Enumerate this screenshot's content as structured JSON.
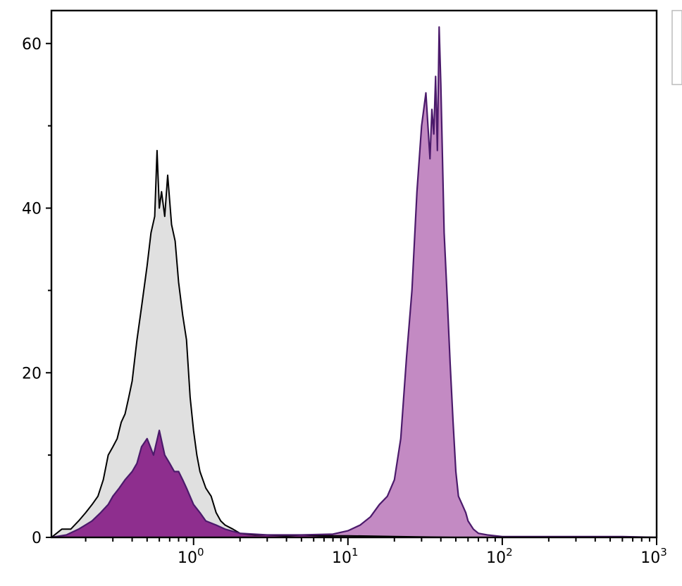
{
  "chart_data": {
    "type": "area",
    "title": "",
    "xlabel": "",
    "ylabel": "",
    "x_scale": "log",
    "xlim": [
      0.12,
      1000
    ],
    "ylim": [
      0,
      64
    ],
    "grid": false,
    "x_ticks": [
      {
        "value": 1,
        "base": "10",
        "exp": "0"
      },
      {
        "value": 10,
        "base": "10",
        "exp": "1"
      },
      {
        "value": 100,
        "base": "10",
        "exp": "2"
      },
      {
        "value": 1000,
        "base": "10",
        "exp": "3"
      }
    ],
    "y_ticks": [
      {
        "value": 0,
        "label": "0"
      },
      {
        "value": 20,
        "label": "20"
      },
      {
        "value": 40,
        "label": "40"
      },
      {
        "value": 60,
        "label": "60"
      }
    ],
    "colors": {
      "control_fill": "#e0e0e0",
      "control_line": "#000000",
      "stained_low_fill": "#8e2e8e",
      "stained_high_fill": "#c38ac3",
      "stained_line": "#4b1a6b"
    },
    "series": [
      {
        "role": "control",
        "x": [
          0.12,
          0.14,
          0.16,
          0.18,
          0.2,
          0.22,
          0.24,
          0.26,
          0.28,
          0.3,
          0.32,
          0.34,
          0.36,
          0.38,
          0.4,
          0.43,
          0.46,
          0.5,
          0.53,
          0.56,
          0.58,
          0.6,
          0.62,
          0.65,
          0.68,
          0.72,
          0.76,
          0.8,
          0.85,
          0.9,
          0.95,
          1.0,
          1.05,
          1.1,
          1.2,
          1.3,
          1.4,
          1.5,
          1.6,
          1.8,
          2.0,
          2.5,
          3.0,
          4.0,
          5.0,
          7.0,
          10.0,
          20.0,
          50.0,
          100.0,
          1000.0
        ],
        "values": [
          0,
          1,
          1,
          2,
          3,
          4,
          5,
          7,
          10,
          11,
          12,
          14,
          15,
          17,
          19,
          24,
          28,
          33,
          37,
          39,
          47,
          40,
          42,
          39,
          44,
          38,
          36,
          31,
          27,
          24,
          17,
          13,
          10,
          8,
          6,
          5,
          3,
          2,
          1.5,
          1,
          0.5,
          0.3,
          0.3,
          0.2,
          0.3,
          0.2,
          0.2,
          0.1,
          0,
          0,
          0
        ]
      },
      {
        "role": "stained",
        "x": [
          0.12,
          0.15,
          0.18,
          0.22,
          0.25,
          0.28,
          0.3,
          0.33,
          0.36,
          0.4,
          0.43,
          0.46,
          0.5,
          0.55,
          0.6,
          0.65,
          0.7,
          0.75,
          0.8,
          0.85,
          0.9,
          1.0,
          1.1,
          1.2,
          1.4,
          1.6,
          2.0,
          3.0,
          5.0,
          8.0,
          10.0,
          12.0,
          14.0,
          16.0,
          18.0,
          20.0,
          22.0,
          24.0,
          26.0,
          28.0,
          30.0,
          32.0,
          34.0,
          35.0,
          36.0,
          37.0,
          38.0,
          39.0,
          40.0,
          42.0,
          44.0,
          46.0,
          48.0,
          50.0,
          52.0,
          55.0,
          58.0,
          60.0,
          65.0,
          70.0,
          80.0,
          100.0,
          150.0,
          250.0,
          600.0,
          1000.0
        ],
        "values": [
          0,
          0.3,
          1,
          2,
          3,
          4,
          5,
          6,
          7,
          8,
          9,
          11,
          12,
          10,
          13,
          10,
          9,
          8,
          8,
          7,
          6,
          4,
          3,
          2,
          1.5,
          1,
          0.5,
          0.3,
          0.3,
          0.4,
          0.8,
          1.5,
          2.5,
          4,
          5,
          7,
          12,
          22,
          30,
          42,
          50,
          54,
          46,
          52,
          49,
          56,
          47,
          62,
          55,
          37,
          29,
          21,
          14,
          8,
          5,
          4,
          3,
          2,
          1,
          0.5,
          0.3,
          0.1,
          0.1,
          0.1,
          0.1,
          0
        ]
      }
    ]
  }
}
